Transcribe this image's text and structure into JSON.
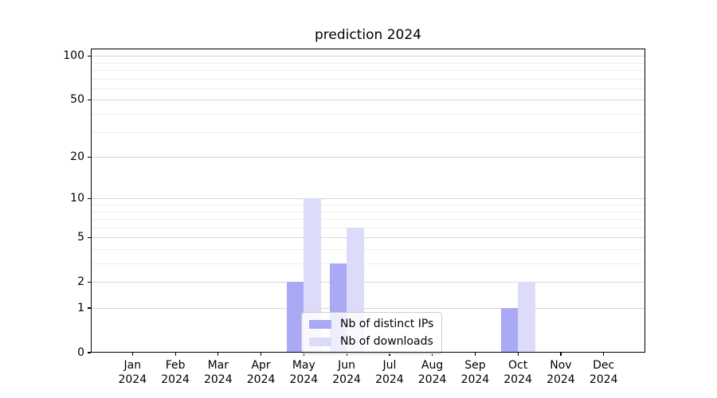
{
  "chart_data": {
    "type": "bar",
    "title": "prediction 2024",
    "categories": [
      "Jan",
      "Feb",
      "Mar",
      "Apr",
      "May",
      "Jun",
      "Jul",
      "Aug",
      "Sep",
      "Oct",
      "Nov",
      "Dec"
    ],
    "x_tick_second_line": "2024",
    "series": [
      {
        "name": "Nb of distinct IPs",
        "color": "#a9a9f5",
        "values": [
          0,
          0,
          0,
          0,
          2,
          3,
          0,
          0,
          0,
          1,
          0,
          0
        ]
      },
      {
        "name": "Nb of downloads",
        "color": "#dcdcfa",
        "values": [
          0,
          0,
          0,
          0,
          10,
          6,
          0,
          0,
          0,
          2,
          0,
          0
        ]
      }
    ],
    "yscale": "log1p",
    "ylabel": "",
    "xlabel": "",
    "ylim": [
      0,
      112
    ],
    "y_ticks": [
      {
        "value": 0,
        "label": "0"
      },
      {
        "value": 1,
        "label": "1"
      },
      {
        "value": 2,
        "label": "2"
      },
      {
        "value": 5,
        "label": "5"
      },
      {
        "value": 10,
        "label": "10"
      },
      {
        "value": 20,
        "label": "20"
      },
      {
        "value": 50,
        "label": "50"
      },
      {
        "value": 100,
        "label": "100"
      }
    ],
    "y_minor_gridlines": [
      3,
      4,
      6,
      7,
      8,
      9,
      30,
      40,
      60,
      70,
      80,
      90
    ],
    "grid": true,
    "legend": {
      "position": "lower-center",
      "entries": [
        "Nb of distinct IPs",
        "Nb of downloads"
      ]
    },
    "colors": {
      "major_grid": "#d6d6d6",
      "minor_grid": "#eeeeee",
      "spine": "#000000",
      "background": "#ffffff",
      "text": "#000000"
    }
  }
}
